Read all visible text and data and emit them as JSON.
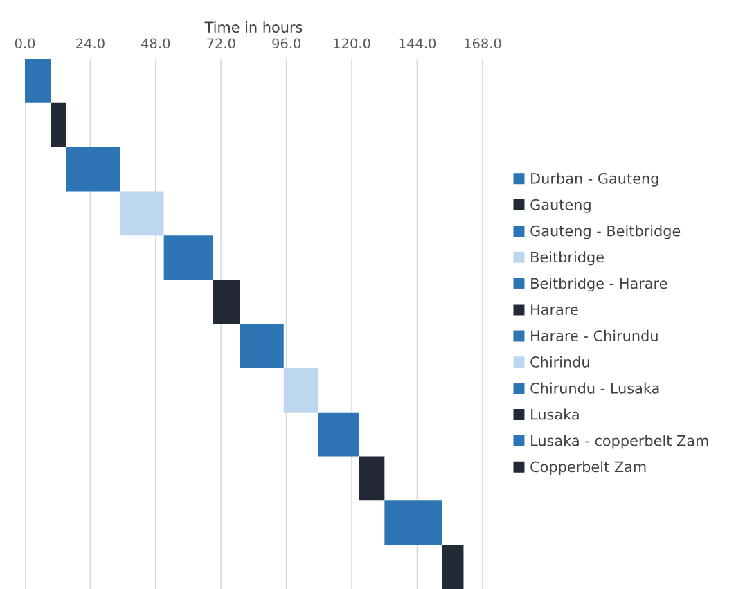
{
  "chart_data": {
    "type": "bar",
    "orientation": "horizontal",
    "xlabel": "Time in hours",
    "categories": [
      null,
      null,
      null,
      null,
      null,
      null,
      null,
      null,
      null,
      null,
      null,
      null
    ],
    "series": [
      {
        "name": "Durban - Gauteng",
        "color": "#2e75b6",
        "values": [
          9.5,
          null,
          null,
          null,
          null,
          null,
          null,
          null,
          null,
          null,
          null,
          null
        ],
        "base": [
          0,
          null,
          null,
          null,
          null,
          null,
          null,
          null,
          null,
          null,
          null,
          null
        ]
      },
      {
        "name": "Gauteng",
        "color": "#222a35",
        "values": [
          null,
          5.5,
          null,
          null,
          null,
          null,
          null,
          null,
          null,
          null,
          null,
          null
        ],
        "base": [
          null,
          9.5,
          null,
          null,
          null,
          null,
          null,
          null,
          null,
          null,
          null,
          null
        ]
      },
      {
        "name": "Gauteng - Beitbridge",
        "color": "#2e75b6",
        "values": [
          null,
          null,
          20,
          null,
          null,
          null,
          null,
          null,
          null,
          null,
          null,
          null
        ],
        "base": [
          null,
          null,
          15,
          null,
          null,
          null,
          null,
          null,
          null,
          null,
          null,
          null
        ]
      },
      {
        "name": "Beitbridge",
        "color": "#bdd7ee",
        "values": [
          null,
          null,
          null,
          16,
          null,
          null,
          null,
          null,
          null,
          null,
          null,
          null
        ],
        "base": [
          null,
          null,
          null,
          35,
          null,
          null,
          null,
          null,
          null,
          null,
          null,
          null
        ]
      },
      {
        "name": "Beitbridge - Harare",
        "color": "#2e75b6",
        "values": [
          null,
          null,
          null,
          null,
          18,
          null,
          null,
          null,
          null,
          null,
          null,
          null
        ],
        "base": [
          null,
          null,
          null,
          null,
          51,
          null,
          null,
          null,
          null,
          null,
          null,
          null
        ]
      },
      {
        "name": "Harare",
        "color": "#222a35",
        "values": [
          null,
          null,
          null,
          null,
          null,
          10,
          null,
          null,
          null,
          null,
          null,
          null
        ],
        "base": [
          null,
          null,
          null,
          null,
          null,
          69,
          null,
          null,
          null,
          null,
          null,
          null
        ]
      },
      {
        "name": "Harare - Chirundu",
        "color": "#2e75b6",
        "values": [
          null,
          null,
          null,
          null,
          null,
          null,
          16,
          null,
          null,
          null,
          null,
          null
        ],
        "base": [
          null,
          null,
          null,
          null,
          null,
          null,
          79,
          null,
          null,
          null,
          null,
          null
        ]
      },
      {
        "name": "Chirindu",
        "color": "#bdd7ee",
        "values": [
          null,
          null,
          null,
          null,
          null,
          null,
          null,
          12.5,
          null,
          null,
          null,
          null
        ],
        "base": [
          null,
          null,
          null,
          null,
          null,
          null,
          null,
          95,
          null,
          null,
          null,
          null
        ]
      },
      {
        "name": "Chirundu - Lusaka",
        "color": "#2e75b6",
        "values": [
          null,
          null,
          null,
          null,
          null,
          null,
          null,
          null,
          15,
          null,
          null,
          null
        ],
        "base": [
          null,
          null,
          null,
          null,
          null,
          null,
          null,
          null,
          107.5,
          null,
          null,
          null
        ]
      },
      {
        "name": "Lusaka",
        "color": "#222a35",
        "values": [
          null,
          null,
          null,
          null,
          null,
          null,
          null,
          null,
          null,
          9.5,
          null,
          null
        ],
        "base": [
          null,
          null,
          null,
          null,
          null,
          null,
          null,
          null,
          null,
          122.5,
          null,
          null
        ]
      },
      {
        "name": "Lusaka - copperbelt Zam",
        "color": "#2e75b6",
        "values": [
          null,
          null,
          null,
          null,
          null,
          null,
          null,
          null,
          null,
          null,
          21,
          null
        ],
        "base": [
          null,
          null,
          null,
          null,
          null,
          null,
          null,
          null,
          null,
          null,
          132,
          null
        ]
      },
      {
        "name": "Copperbelt Zam",
        "color": "#222a35",
        "values": [
          null,
          null,
          null,
          null,
          null,
          null,
          null,
          null,
          null,
          null,
          null,
          8
        ],
        "base": [
          null,
          null,
          null,
          null,
          null,
          null,
          null,
          null,
          null,
          null,
          null,
          153
        ]
      }
    ],
    "xlim": [
      0,
      168
    ],
    "xticks": [
      {
        "value": 0,
        "label": "0.0"
      },
      {
        "value": 24,
        "label": "24.0"
      },
      {
        "value": 48,
        "label": "48.0"
      },
      {
        "value": 72,
        "label": "72.0"
      },
      {
        "value": 96,
        "label": "96.0"
      },
      {
        "value": 120,
        "label": "120.0"
      },
      {
        "value": 144,
        "label": "144.0"
      },
      {
        "value": 168,
        "label": "168.0"
      }
    ],
    "grid": "x",
    "legend": "right",
    "tick_labels": "x"
  }
}
